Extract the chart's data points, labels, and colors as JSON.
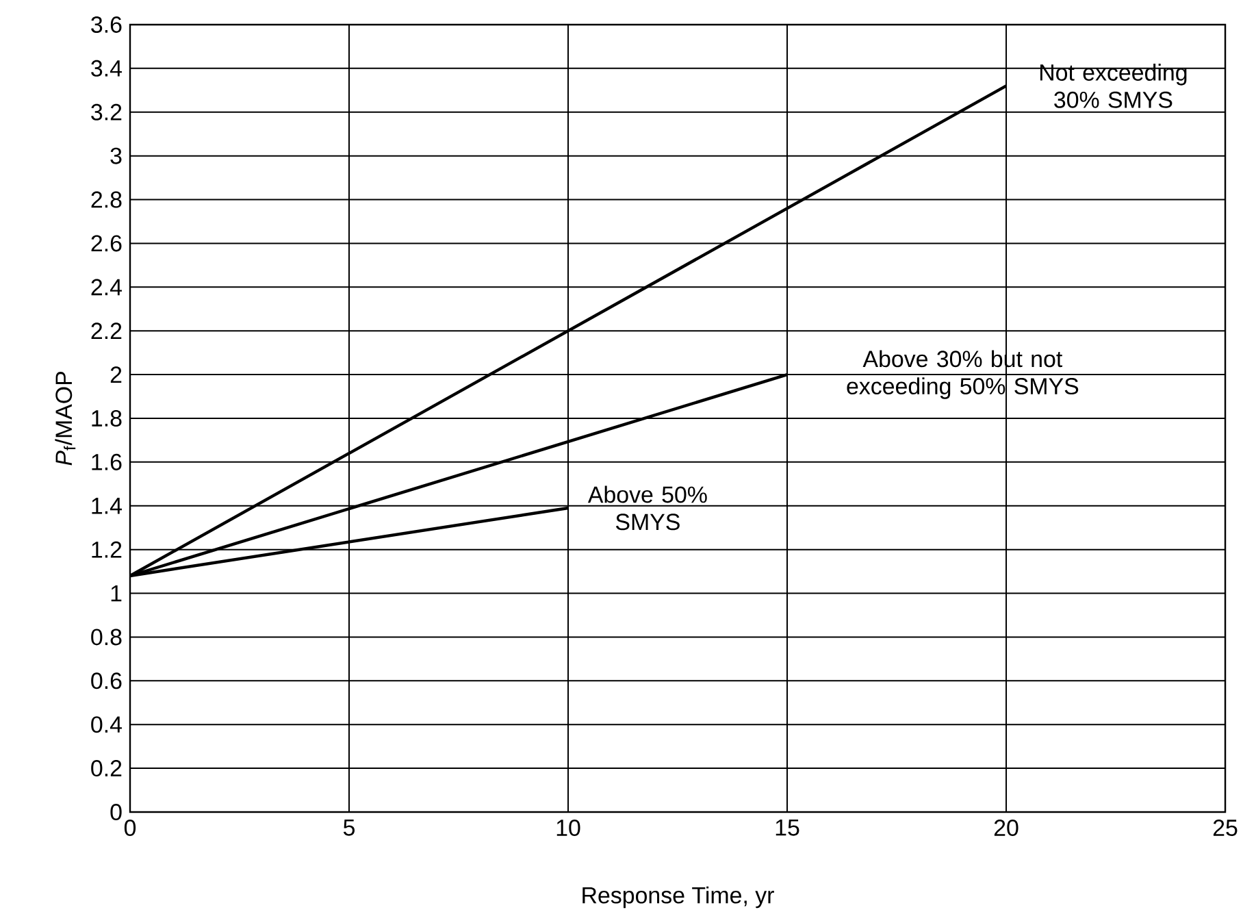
{
  "chart_data": {
    "type": "line",
    "xlabel": "Response Time, yr",
    "ylabel": "*P*$_{f}$/MAOP",
    "series": [
      {
        "color": "#000000",
        "x": [
          0,
          20
        ],
        "values": [
          1.08,
          3.32
        ]
      },
      {
        "color": "#000000",
        "x": [
          0,
          15
        ],
        "values": [
          1.08,
          2.0
        ]
      },
      {
        "color": "#000000",
        "x": [
          0,
          10
        ],
        "values": [
          1.08,
          1.39
        ]
      }
    ],
    "annotations": [
      {
        "text": "Not exceeding 30% SMYS",
        "x": 20,
        "y": 3.32
      },
      {
        "text": "Above 30% but not exceeding 50% SMYS",
        "x": 15,
        "y": 2.0
      },
      {
        "text": "Above 50% SMYS",
        "x": 10,
        "y": 1.39
      }
    ],
    "xlim": [
      0,
      25
    ],
    "ylim": [
      0,
      3.6
    ],
    "xticks": [
      0,
      5,
      10,
      15,
      20,
      25
    ],
    "yticks": [
      0,
      0.2,
      0.4,
      0.6,
      0.8,
      1,
      1.2,
      1.4,
      1.6,
      1.8,
      2,
      2.2,
      2.4,
      2.6,
      2.8,
      3,
      3.2,
      3.4,
      3.6
    ],
    "grid": true,
    "line_style": "solid"
  }
}
